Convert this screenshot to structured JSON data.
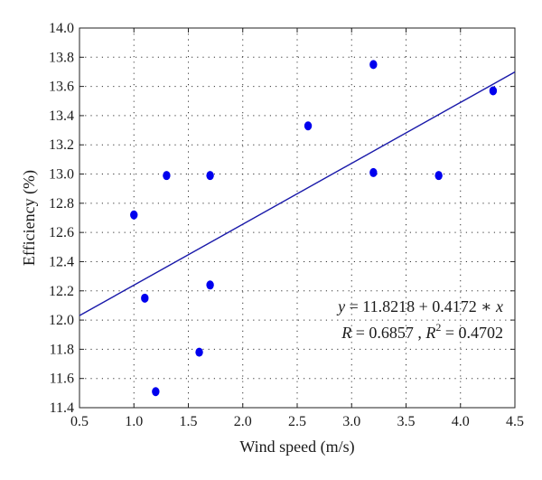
{
  "chart_data": {
    "type": "scatter",
    "title": "",
    "xlabel": "Wind speed (m/s)",
    "ylabel": "Efficiency (%)",
    "xlim": [
      0.5,
      4.5
    ],
    "ylim": [
      11.4,
      14.0
    ],
    "xticks": [
      0.5,
      1.0,
      1.5,
      2.0,
      2.5,
      3.0,
      3.5,
      4.0,
      4.5
    ],
    "xtick_labels": [
      "0.5",
      "1.0",
      "1.5",
      "2.0",
      "2.5",
      "3.0",
      "3.5",
      "4.0",
      "4.5"
    ],
    "yticks": [
      11.4,
      11.6,
      11.8,
      12.0,
      12.2,
      12.4,
      12.6,
      12.8,
      13.0,
      13.2,
      13.4,
      13.6,
      13.8,
      14.0
    ],
    "ytick_labels": [
      "11.4",
      "11.6",
      "11.8",
      "12.0",
      "12.2",
      "12.4",
      "12.6",
      "12.8",
      "13.0",
      "13.2",
      "13.4",
      "13.6",
      "13.8",
      "14.0"
    ],
    "grid": true,
    "grid_style": "dotted",
    "series": [
      {
        "points": [
          {
            "x": 1.0,
            "y": 12.72
          },
          {
            "x": 1.1,
            "y": 12.15
          },
          {
            "x": 1.2,
            "y": 11.51
          },
          {
            "x": 1.3,
            "y": 12.99
          },
          {
            "x": 1.6,
            "y": 11.78
          },
          {
            "x": 1.7,
            "y": 12.99
          },
          {
            "x": 1.7,
            "y": 12.24
          },
          {
            "x": 2.6,
            "y": 13.33
          },
          {
            "x": 3.2,
            "y": 13.75
          },
          {
            "x": 3.2,
            "y": 13.01
          },
          {
            "x": 3.8,
            "y": 12.99
          },
          {
            "x": 4.3,
            "y": 13.57
          }
        ],
        "color": "#0000ee"
      }
    ],
    "fit_line": {
      "intercept": 11.8218,
      "slope": 0.4172,
      "color": "#1a1aaa"
    },
    "annotation": {
      "line1": {
        "y_var": "y",
        "eq": " = 11.8218 + 0.4172 ∗ ",
        "x_var": "x"
      },
      "line2": {
        "r_var": "R",
        "r_eq": " = 0.6857 , ",
        "r2_var": "R",
        "r2_sup": "2",
        "r2_eq": " = 0.4702"
      }
    }
  }
}
